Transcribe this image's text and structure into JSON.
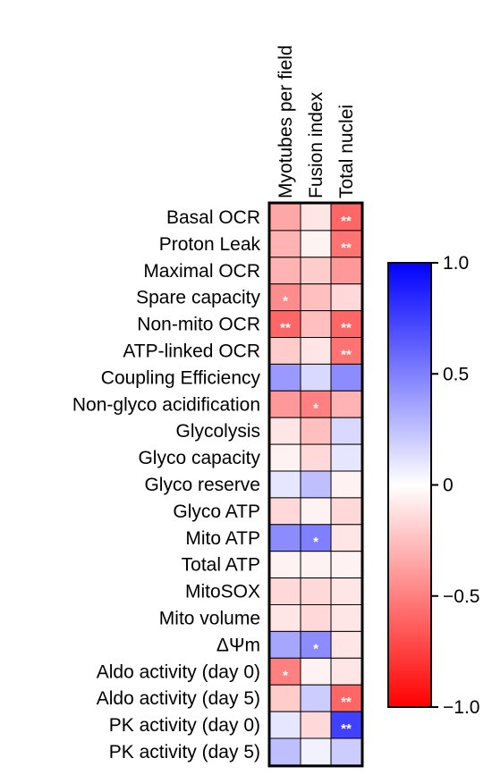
{
  "chart_data": {
    "type": "heatmap",
    "columns": [
      "Myotubes per field",
      "Fusion index",
      "Total nuclei"
    ],
    "rows": [
      "Basal OCR",
      "Proton Leak",
      "Maximal OCR",
      "Spare capacity",
      "Non-mito OCR",
      "ATP-linked OCR",
      "Coupling Efficiency",
      "Non-glyco acidification",
      "Glycolysis",
      "Glyco capacity",
      "Glyco reserve",
      "Glyco ATP",
      "Mito ATP",
      "Total ATP",
      "MitoSOX",
      "Mito volume",
      "ΔΨm",
      "Aldo activity (day 0)",
      "Aldo activity (day 5)",
      "PK activity (day 0)",
      "PK activity (day 5)"
    ],
    "values": [
      [
        -0.35,
        -0.1,
        -0.6
      ],
      [
        -0.3,
        -0.05,
        -0.55
      ],
      [
        -0.3,
        -0.2,
        -0.4
      ],
      [
        -0.45,
        -0.25,
        -0.15
      ],
      [
        -0.6,
        -0.25,
        -0.6
      ],
      [
        -0.2,
        -0.1,
        -0.55
      ],
      [
        0.4,
        0.15,
        0.45
      ],
      [
        -0.4,
        -0.5,
        -0.3
      ],
      [
        -0.1,
        -0.25,
        0.15
      ],
      [
        -0.05,
        -0.15,
        0.1
      ],
      [
        0.1,
        0.25,
        -0.05
      ],
      [
        -0.15,
        -0.05,
        -0.15
      ],
      [
        0.45,
        0.5,
        -0.1
      ],
      [
        -0.05,
        -0.05,
        -0.05
      ],
      [
        -0.15,
        -0.15,
        -0.1
      ],
      [
        -0.1,
        -0.15,
        -0.1
      ],
      [
        0.35,
        0.45,
        -0.1
      ],
      [
        -0.5,
        -0.05,
        -0.1
      ],
      [
        -0.2,
        0.2,
        -0.6
      ],
      [
        0.1,
        -0.15,
        0.75
      ],
      [
        0.25,
        0.05,
        0.2
      ]
    ],
    "significance": [
      [
        "",
        "",
        "**"
      ],
      [
        "",
        "",
        "**"
      ],
      [
        "",
        "",
        ""
      ],
      [
        "*",
        "",
        ""
      ],
      [
        "**",
        "",
        "**"
      ],
      [
        "",
        "",
        "**"
      ],
      [
        "",
        "",
        ""
      ],
      [
        "",
        "*",
        ""
      ],
      [
        "",
        "",
        ""
      ],
      [
        "",
        "",
        ""
      ],
      [
        "",
        "",
        ""
      ],
      [
        "",
        "",
        ""
      ],
      [
        "",
        "*",
        ""
      ],
      [
        "",
        "",
        ""
      ],
      [
        "",
        "",
        ""
      ],
      [
        "",
        "",
        ""
      ],
      [
        "",
        "*",
        ""
      ],
      [
        "*",
        "",
        ""
      ],
      [
        "",
        "",
        "**"
      ],
      [
        "",
        "",
        "**"
      ],
      [
        "",
        "",
        ""
      ]
    ],
    "colorbar": {
      "range": [
        -1.0,
        1.0
      ],
      "ticks": [
        1.0,
        0.5,
        0,
        -0.5,
        -1.0
      ],
      "tick_labels": [
        "1.0",
        "0.5",
        "0",
        "−0.5",
        "−1.0"
      ],
      "colors": {
        "negative": "#ff0000",
        "zero": "#ffffff",
        "positive": "#0000ff"
      }
    },
    "grid": true,
    "legend": "right"
  }
}
